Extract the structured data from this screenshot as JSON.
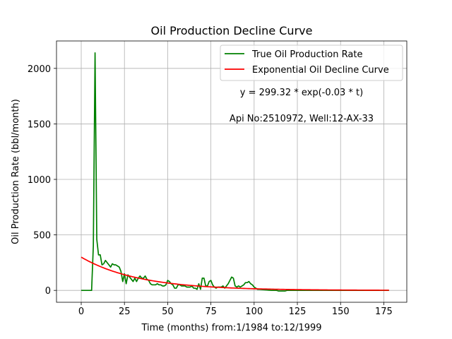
{
  "chart_data": {
    "type": "line",
    "title": "Oil Production Decline Curve",
    "xlabel": "Time (months) from:1/1984 to:12/1999",
    "ylabel": "Oil Production Rate (bbl/month)",
    "xlim": [
      -14.3,
      188.3
    ],
    "ylim": [
      -107,
      2247
    ],
    "x_ticks": [
      0,
      25,
      50,
      75,
      100,
      125,
      150,
      175
    ],
    "y_ticks": [
      0,
      500,
      1000,
      1500,
      2000
    ],
    "grid": true,
    "legend_position": "top-right",
    "annotations": [
      "y = 299.32 * exp(-0.03 * t)",
      "Api No:2510972, Well:12-AX-33"
    ],
    "series": [
      {
        "name": "True Oil Production Rate",
        "color": "#008000",
        "points": [
          [
            0,
            0
          ],
          [
            6,
            0
          ],
          [
            7,
            400
          ],
          [
            8,
            2140
          ],
          [
            9,
            460
          ],
          [
            10,
            320
          ],
          [
            11,
            320
          ],
          [
            12,
            230
          ],
          [
            13,
            240
          ],
          [
            14,
            270
          ],
          [
            15,
            250
          ],
          [
            16,
            230
          ],
          [
            17,
            210
          ],
          [
            18,
            240
          ],
          [
            19,
            230
          ],
          [
            20,
            230
          ],
          [
            21,
            220
          ],
          [
            22,
            210
          ],
          [
            23,
            170
          ],
          [
            24,
            80
          ],
          [
            25,
            150
          ],
          [
            26,
            60
          ],
          [
            27,
            140
          ],
          [
            28,
            120
          ],
          [
            29,
            100
          ],
          [
            30,
            80
          ],
          [
            31,
            110
          ],
          [
            32,
            80
          ],
          [
            33,
            110
          ],
          [
            34,
            130
          ],
          [
            35,
            110
          ],
          [
            36,
            110
          ],
          [
            37,
            130
          ],
          [
            38,
            100
          ],
          [
            39,
            90
          ],
          [
            40,
            60
          ],
          [
            41,
            50
          ],
          [
            42,
            50
          ],
          [
            43,
            50
          ],
          [
            44,
            60
          ],
          [
            45,
            50
          ],
          [
            46,
            50
          ],
          [
            47,
            40
          ],
          [
            48,
            40
          ],
          [
            49,
            50
          ],
          [
            50,
            90
          ],
          [
            51,
            80
          ],
          [
            52,
            60
          ],
          [
            53,
            50
          ],
          [
            54,
            20
          ],
          [
            55,
            20
          ],
          [
            56,
            50
          ],
          [
            57,
            50
          ],
          [
            58,
            40
          ],
          [
            59,
            40
          ],
          [
            60,
            40
          ],
          [
            61,
            30
          ],
          [
            62,
            30
          ],
          [
            63,
            30
          ],
          [
            64,
            40
          ],
          [
            65,
            20
          ],
          [
            66,
            20
          ],
          [
            67,
            10
          ],
          [
            68,
            60
          ],
          [
            69,
            10
          ],
          [
            70,
            110
          ],
          [
            71,
            110
          ],
          [
            72,
            40
          ],
          [
            73,
            40
          ],
          [
            74,
            80
          ],
          [
            75,
            90
          ],
          [
            76,
            50
          ],
          [
            77,
            30
          ],
          [
            78,
            20
          ],
          [
            79,
            30
          ],
          [
            80,
            30
          ],
          [
            81,
            30
          ],
          [
            82,
            40
          ],
          [
            83,
            20
          ],
          [
            84,
            40
          ],
          [
            85,
            60
          ],
          [
            86,
            90
          ],
          [
            87,
            120
          ],
          [
            88,
            110
          ],
          [
            89,
            40
          ],
          [
            90,
            30
          ],
          [
            91,
            40
          ],
          [
            92,
            30
          ],
          [
            93,
            40
          ],
          [
            94,
            50
          ],
          [
            95,
            70
          ],
          [
            96,
            70
          ],
          [
            97,
            80
          ],
          [
            98,
            60
          ],
          [
            99,
            50
          ],
          [
            100,
            30
          ],
          [
            101,
            20
          ],
          [
            102,
            10
          ],
          [
            103,
            10
          ],
          [
            110,
            0
          ],
          [
            113,
            0
          ],
          [
            114,
            -5
          ],
          [
            118,
            -5
          ],
          [
            119,
            0
          ],
          [
            178,
            0
          ]
        ]
      },
      {
        "name": "Exponential Oil Decline Curve",
        "color": "#ff0000",
        "equation": {
          "a": 299.32,
          "b": 0.03,
          "x_start": 0,
          "x_end": 178
        }
      }
    ]
  }
}
